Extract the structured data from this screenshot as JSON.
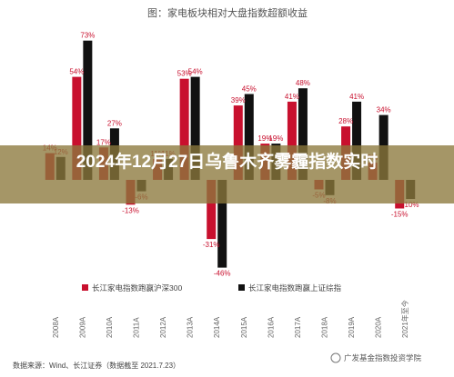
{
  "chart_data": {
    "type": "bar",
    "title": "图：家电板块相对大盘指数超额收益",
    "categories": [
      "2008A",
      "2009A",
      "2010A",
      "2011A",
      "2012A",
      "2013A",
      "2014A",
      "2015A",
      "2016A",
      "2017A",
      "2018A",
      "2019A",
      "2020A",
      "2021年至今"
    ],
    "series": [
      {
        "name": "长江家电指数跑赢沪深300",
        "color": "#c8102e",
        "values": [
          14,
          54,
          17,
          -13,
          11,
          53,
          -31,
          39,
          19,
          41,
          -5,
          28,
          9,
          -15
        ],
        "labels": [
          "14%",
          "54%",
          "17%",
          "-13%",
          "11%",
          "53%",
          "-31%",
          "39%",
          "19%",
          "41%",
          "-5%",
          "28%",
          "9%",
          "-15%"
        ]
      },
      {
        "name": "长江家电指数跑赢上证综指",
        "color": "#111111",
        "values": [
          12,
          73,
          27,
          -6,
          11,
          54,
          -46,
          45,
          19,
          48,
          -8,
          41,
          34,
          -10
        ],
        "labels": [
          "12%",
          "73%",
          "27%",
          "-6%",
          "11%",
          "54%",
          "-46%",
          "45%",
          "19%",
          "48%",
          "-8%",
          "41%",
          "34%",
          "-10%"
        ]
      }
    ],
    "ylim": [
      -55,
      80
    ]
  },
  "source_note": "数据来源：Wind、长江证券（数据截至 2021.7.23）",
  "watermark": "广发基金指数投资学院",
  "overlay_title": "2024年12月27日乌鲁木齐雾霾指数实时"
}
